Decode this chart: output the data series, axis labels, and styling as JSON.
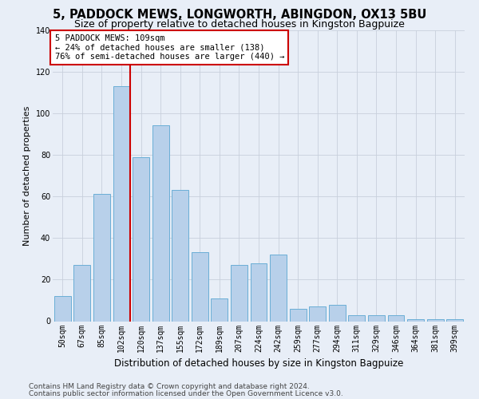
{
  "title1": "5, PADDOCK MEWS, LONGWORTH, ABINGDON, OX13 5BU",
  "title2": "Size of property relative to detached houses in Kingston Bagpuize",
  "xlabel": "Distribution of detached houses by size in Kingston Bagpuize",
  "ylabel": "Number of detached properties",
  "categories": [
    "50sqm",
    "67sqm",
    "85sqm",
    "102sqm",
    "120sqm",
    "137sqm",
    "155sqm",
    "172sqm",
    "189sqm",
    "207sqm",
    "224sqm",
    "242sqm",
    "259sqm",
    "277sqm",
    "294sqm",
    "311sqm",
    "329sqm",
    "346sqm",
    "364sqm",
    "381sqm",
    "399sqm"
  ],
  "values": [
    12,
    27,
    61,
    113,
    79,
    94,
    63,
    33,
    11,
    27,
    28,
    32,
    6,
    7,
    8,
    3,
    3,
    3,
    1,
    1,
    1
  ],
  "bar_color": "#b8d0ea",
  "bar_edge_color": "#6aaed6",
  "annotation_line1": "5 PADDOCK MEWS: 109sqm",
  "annotation_line2": "← 24% of detached houses are smaller (138)",
  "annotation_line3": "76% of semi-detached houses are larger (440) →",
  "annotation_box_color": "#ffffff",
  "annotation_box_edge": "#cc0000",
  "red_line_color": "#cc0000",
  "background_color": "#e8eef7",
  "grid_color": "#c8d0dc",
  "ylim": [
    0,
    140
  ],
  "yticks": [
    0,
    20,
    40,
    60,
    80,
    100,
    120,
    140
  ],
  "footer1": "Contains HM Land Registry data © Crown copyright and database right 2024.",
  "footer2": "Contains public sector information licensed under the Open Government Licence v3.0.",
  "title1_fontsize": 10.5,
  "title2_fontsize": 9,
  "xlabel_fontsize": 8.5,
  "ylabel_fontsize": 8,
  "tick_fontsize": 7,
  "footer_fontsize": 6.5,
  "annotation_fontsize": 7.5,
  "red_line_x": 3.43
}
